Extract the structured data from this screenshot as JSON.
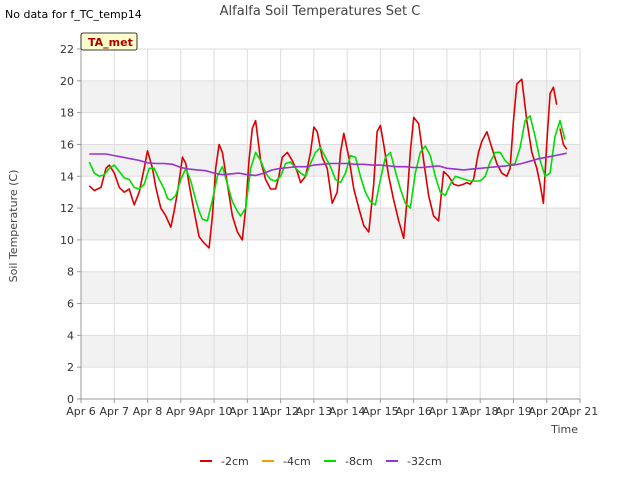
{
  "no_data_note": "No data for f_TC_temp14",
  "chart_data": {
    "type": "line",
    "title": "Alfalfa Soil Temperatures Set C",
    "xlabel": "Time",
    "ylabel": "Soil Temperature (C)",
    "badge": "TA_met",
    "xlim": [
      6,
      21
    ],
    "ylim": [
      0,
      22
    ],
    "x_ticks": [
      6,
      7,
      8,
      9,
      10,
      11,
      12,
      13,
      14,
      15,
      16,
      17,
      18,
      19,
      20,
      21
    ],
    "x_tick_labels": [
      "Apr 6",
      "Apr 7",
      "Apr 8",
      "Apr 9",
      "Apr 10",
      "Apr 11",
      "Apr 12",
      "Apr 13",
      "Apr 14",
      "Apr 15",
      "Apr 16",
      "Apr 17",
      "Apr 18",
      "Apr 19",
      "Apr 20",
      "Apr 21"
    ],
    "y_ticks": [
      0,
      2,
      4,
      6,
      8,
      10,
      12,
      14,
      16,
      18,
      20,
      22
    ],
    "y_tick_labels": [
      "0",
      "2",
      "4",
      "6",
      "8",
      "10",
      "12",
      "14",
      "16",
      "18",
      "20",
      "22"
    ],
    "grid": true,
    "legend_position": "bottom",
    "series": [
      {
        "name": "-2cm",
        "color": "#dd0000",
        "x": [
          6.25,
          6.4,
          6.6,
          6.75,
          6.85,
          7.0,
          7.15,
          7.3,
          7.45,
          7.6,
          7.75,
          7.9,
          8.0,
          8.15,
          8.25,
          8.4,
          8.55,
          8.7,
          8.8,
          8.9,
          9.05,
          9.15,
          9.25,
          9.4,
          9.55,
          9.7,
          9.85,
          9.95,
          10.05,
          10.15,
          10.25,
          10.4,
          10.55,
          10.7,
          10.85,
          10.95,
          11.05,
          11.15,
          11.25,
          11.4,
          11.55,
          11.7,
          11.85,
          11.95,
          12.05,
          12.2,
          12.35,
          12.5,
          12.6,
          12.75,
          12.9,
          13.0,
          13.1,
          13.25,
          13.4,
          13.55,
          13.7,
          13.8,
          13.9,
          14.05,
          14.2,
          14.35,
          14.5,
          14.65,
          14.8,
          14.9,
          15.0,
          15.1,
          15.25,
          15.4,
          15.55,
          15.7,
          15.8,
          15.9,
          16.0,
          16.15,
          16.3,
          16.45,
          16.6,
          16.75,
          16.9,
          17.05,
          17.2,
          17.35,
          17.5,
          17.6,
          17.7,
          17.8,
          17.95,
          18.05,
          18.2,
          18.35,
          18.5,
          18.65,
          18.8,
          18.9,
          19.0,
          19.1,
          19.25,
          19.4,
          19.55,
          19.7,
          19.8,
          19.9,
          20.0,
          20.1,
          20.2,
          20.3
        ],
        "values": [
          13.4,
          13.1,
          13.3,
          14.5,
          14.7,
          14.2,
          13.3,
          13.0,
          13.2,
          12.2,
          13.0,
          14.5,
          15.6,
          14.5,
          13.3,
          12.0,
          11.5,
          10.8,
          11.8,
          13.0,
          15.2,
          14.8,
          13.5,
          11.8,
          10.2,
          9.8,
          9.5,
          11.5,
          14.5,
          16.0,
          15.5,
          13.5,
          11.5,
          10.5,
          10.0,
          12.0,
          15.0,
          17.0,
          17.5,
          15.0,
          13.8,
          13.2,
          13.2,
          14.0,
          15.2,
          15.5,
          15.0,
          14.3,
          13.6,
          14.0,
          15.5,
          17.1,
          16.8,
          15.2,
          14.5,
          12.3,
          13.0,
          15.5,
          16.7,
          15.2,
          13.2,
          12.0,
          10.9,
          10.5,
          13.5,
          16.8,
          17.2,
          16.0,
          14.0,
          12.5,
          11.2,
          10.1,
          12.5,
          15.5,
          17.7,
          17.3,
          15.0,
          12.8,
          11.5,
          11.2,
          14.3,
          14.0,
          13.5,
          13.4,
          13.5,
          13.6,
          13.5,
          13.8,
          15.5,
          16.2,
          16.8,
          15.8,
          14.8,
          14.2,
          14.0,
          14.5,
          17.5,
          19.8,
          20.1,
          17.5,
          15.5,
          14.5,
          13.5,
          12.3,
          16.0,
          19.2,
          19.6,
          18.5
        ],
        "x2": [
          20.4,
          20.5,
          20.6
        ],
        "values2": [
          17.0,
          16.0,
          15.7
        ]
      },
      {
        "name": "-4cm",
        "color": "#f0a000",
        "x": [],
        "values": []
      },
      {
        "name": "-8cm",
        "color": "#00dd00",
        "x": [
          6.25,
          6.4,
          6.55,
          6.7,
          6.85,
          7.0,
          7.15,
          7.3,
          7.45,
          7.6,
          7.75,
          7.9,
          8.05,
          8.2,
          8.35,
          8.5,
          8.6,
          8.7,
          8.85,
          9.0,
          9.15,
          9.3,
          9.45,
          9.55,
          9.65,
          9.8,
          9.95,
          10.1,
          10.25,
          10.4,
          10.55,
          10.7,
          10.8,
          10.95,
          11.1,
          11.25,
          11.4,
          11.55,
          11.7,
          11.85,
          12.0,
          12.15,
          12.3,
          12.45,
          12.6,
          12.75,
          12.9,
          13.05,
          13.2,
          13.35,
          13.5,
          13.65,
          13.8,
          13.95,
          14.1,
          14.25,
          14.4,
          14.55,
          14.7,
          14.85,
          15.0,
          15.15,
          15.3,
          15.45,
          15.6,
          15.75,
          15.9,
          16.05,
          16.2,
          16.35,
          16.5,
          16.65,
          16.8,
          16.95,
          17.1,
          17.25,
          17.4,
          17.55,
          17.7,
          17.85,
          18.0,
          18.15,
          18.3,
          18.45,
          18.6,
          18.75,
          18.9,
          19.05,
          19.2,
          19.35,
          19.5,
          19.65,
          19.8,
          19.95,
          20.1,
          20.25,
          20.4,
          20.55
        ],
        "values": [
          14.9,
          14.2,
          14.0,
          14.1,
          14.5,
          14.7,
          14.3,
          13.9,
          13.8,
          13.3,
          13.2,
          13.5,
          14.5,
          14.5,
          13.8,
          13.2,
          12.6,
          12.5,
          12.8,
          13.8,
          14.5,
          13.7,
          12.5,
          11.8,
          11.3,
          11.2,
          12.5,
          14.0,
          14.6,
          13.5,
          12.4,
          11.8,
          11.5,
          12.0,
          14.5,
          15.5,
          15.0,
          14.2,
          13.8,
          13.7,
          14.0,
          14.8,
          14.9,
          14.5,
          14.2,
          14.0,
          14.8,
          15.5,
          15.8,
          15.2,
          14.6,
          13.8,
          13.6,
          14.2,
          15.3,
          15.2,
          14.0,
          13.0,
          12.4,
          12.2,
          13.8,
          15.2,
          15.5,
          14.3,
          13.2,
          12.3,
          12.0,
          14.2,
          15.5,
          15.9,
          15.3,
          14.0,
          13.0,
          12.8,
          13.5,
          14.0,
          13.9,
          13.8,
          13.7,
          13.7,
          13.7,
          14.0,
          14.9,
          15.5,
          15.5,
          15.0,
          14.7,
          14.8,
          15.8,
          17.5,
          17.8,
          16.5,
          15.0,
          14.0,
          14.2,
          16.5,
          17.5,
          16.3
        ]
      },
      {
        "name": "-32cm",
        "color": "#9933cc",
        "x": [
          6.25,
          6.5,
          6.75,
          7.0,
          7.25,
          7.5,
          7.75,
          8.0,
          8.25,
          8.5,
          8.75,
          9.0,
          9.25,
          9.5,
          9.75,
          10.0,
          10.25,
          10.5,
          10.75,
          11.0,
          11.25,
          11.5,
          11.75,
          12.0,
          12.25,
          12.5,
          12.75,
          13.0,
          13.25,
          13.5,
          13.75,
          14.0,
          14.25,
          14.5,
          14.75,
          15.0,
          15.25,
          15.5,
          15.75,
          16.0,
          16.25,
          16.5,
          16.75,
          17.0,
          17.25,
          17.5,
          17.75,
          18.0,
          18.25,
          18.5,
          18.75,
          19.0,
          19.25,
          19.5,
          19.75,
          20.0,
          20.25,
          20.6
        ],
        "values": [
          15.4,
          15.4,
          15.4,
          15.3,
          15.2,
          15.1,
          15.0,
          14.85,
          14.8,
          14.8,
          14.75,
          14.55,
          14.45,
          14.4,
          14.35,
          14.2,
          14.1,
          14.15,
          14.2,
          14.1,
          14.05,
          14.2,
          14.4,
          14.5,
          14.55,
          14.6,
          14.6,
          14.7,
          14.75,
          14.8,
          14.8,
          14.8,
          14.75,
          14.75,
          14.7,
          14.7,
          14.65,
          14.6,
          14.6,
          14.55,
          14.55,
          14.6,
          14.65,
          14.5,
          14.45,
          14.4,
          14.45,
          14.5,
          14.55,
          14.6,
          14.65,
          14.7,
          14.8,
          14.95,
          15.1,
          15.2,
          15.3,
          15.45
        ]
      }
    ]
  }
}
